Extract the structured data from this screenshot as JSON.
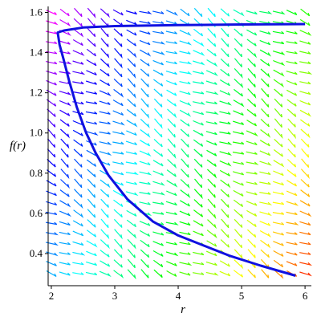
{
  "chart_data": {
    "type": "line",
    "title": "",
    "xlabel": "r",
    "ylabel": "f(r)",
    "xlim": [
      1.95,
      6.1
    ],
    "ylim": [
      0.24,
      1.63
    ],
    "x_ticks": [
      2,
      3,
      4,
      5,
      6
    ],
    "y_ticks": [
      0.4,
      0.6,
      0.8,
      1.0,
      1.2,
      1.4,
      1.6
    ],
    "x_tick_labels": [
      "2",
      "3",
      "4",
      "5",
      "6"
    ],
    "y_tick_labels": [
      "0.4",
      "0.6",
      "0.8",
      "1.0",
      "1.2",
      "1.4",
      "1.6"
    ],
    "grid": false,
    "field": {
      "x_min": 2.0,
      "x_max": 6.0,
      "x_count": 20,
      "y_min": 0.3,
      "y_max": 1.6,
      "y_count": 27
    },
    "series": [
      {
        "name": "",
        "color": "#1010e0",
        "points": [
          [
            5.85,
            0.29
          ],
          [
            5.3,
            0.34
          ],
          [
            4.8,
            0.39
          ],
          [
            4.4,
            0.44
          ],
          [
            4.0,
            0.49
          ],
          [
            3.6,
            0.56
          ],
          [
            3.2,
            0.67
          ],
          [
            2.9,
            0.79
          ],
          [
            2.7,
            0.9
          ],
          [
            2.55,
            1.0
          ],
          [
            2.4,
            1.13
          ],
          [
            2.28,
            1.26
          ],
          [
            2.19,
            1.37
          ],
          [
            2.13,
            1.44
          ],
          [
            2.1,
            1.5
          ],
          [
            2.2,
            1.51
          ],
          [
            2.5,
            1.525
          ],
          [
            3.0,
            1.532
          ],
          [
            4.0,
            1.537
          ],
          [
            5.0,
            1.54
          ],
          [
            6.0,
            1.542
          ]
        ]
      }
    ]
  }
}
